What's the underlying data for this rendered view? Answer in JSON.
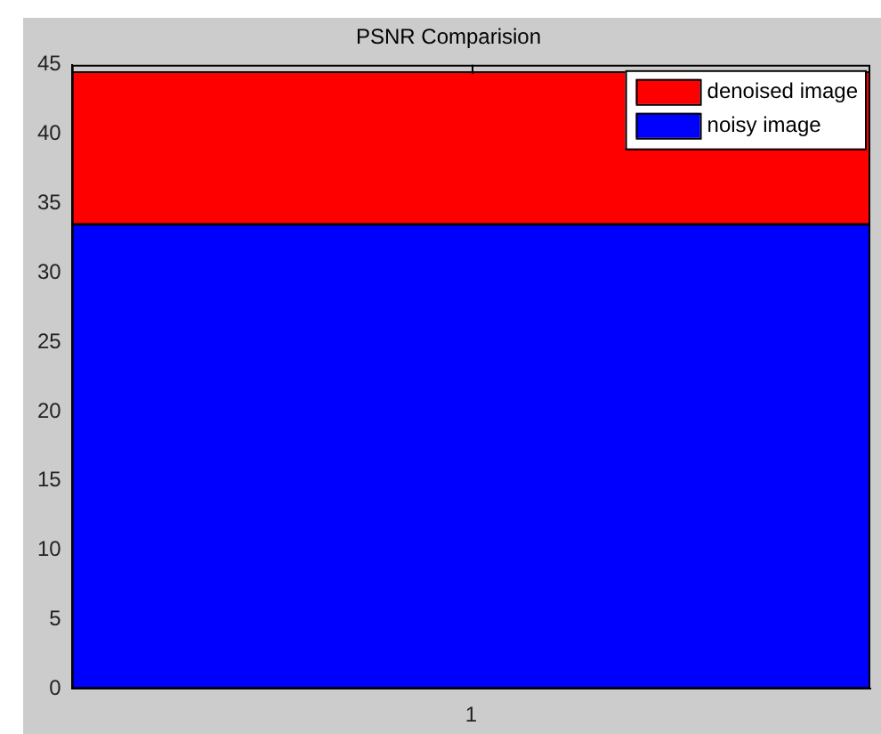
{
  "chart_data": {
    "type": "bar",
    "title": "PSNR Comparision",
    "categories": [
      "1"
    ],
    "stacked": true,
    "series": [
      {
        "name": "noisy image",
        "color": "#0000ff",
        "values": [
          33.5
        ]
      },
      {
        "name": "denoised image",
        "color": "#ff0000",
        "values": [
          11.0
        ]
      }
    ],
    "ylim": [
      0,
      45
    ],
    "yticks": [
      0,
      5,
      10,
      15,
      20,
      25,
      30,
      35,
      40,
      45
    ],
    "grid": false,
    "legend": "top right"
  }
}
